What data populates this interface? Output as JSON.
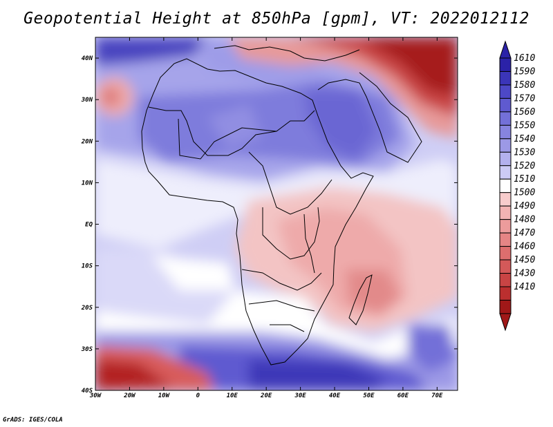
{
  "title": "Geopotential Height at 850hPa [gpm], VT: 2022012112",
  "footer": "GrADS: IGES/COLA",
  "map": {
    "lon_range": [
      -30,
      76
    ],
    "lat_range": [
      -40,
      45
    ],
    "x_ticks": [
      {
        "value": -30,
        "label": "30W"
      },
      {
        "value": -20,
        "label": "20W"
      },
      {
        "value": -10,
        "label": "10W"
      },
      {
        "value": 0,
        "label": "0"
      },
      {
        "value": 10,
        "label": "10E"
      },
      {
        "value": 20,
        "label": "20E"
      },
      {
        "value": 30,
        "label": "30E"
      },
      {
        "value": 40,
        "label": "40E"
      },
      {
        "value": 50,
        "label": "50E"
      },
      {
        "value": 60,
        "label": "60E"
      },
      {
        "value": 70,
        "label": "70E"
      }
    ],
    "y_ticks": [
      {
        "value": 40,
        "label": "40N"
      },
      {
        "value": 30,
        "label": "30N"
      },
      {
        "value": 20,
        "label": "20N"
      },
      {
        "value": 10,
        "label": "10N"
      },
      {
        "value": 0,
        "label": "EQ"
      },
      {
        "value": -10,
        "label": "10S"
      },
      {
        "value": -20,
        "label": "20S"
      },
      {
        "value": -30,
        "label": "30S"
      },
      {
        "value": -40,
        "label": "40S"
      }
    ]
  },
  "colorbar": {
    "labels": [
      "1610",
      "1590",
      "1580",
      "1570",
      "1560",
      "1550",
      "1540",
      "1530",
      "1520",
      "1510",
      "1500",
      "1490",
      "1480",
      "1470",
      "1460",
      "1450",
      "1430",
      "1410"
    ],
    "colors": [
      "#2b22a8",
      "#3b35b8",
      "#4d48c6",
      "#5f5ad0",
      "#7370d8",
      "#8784df",
      "#9c99e6",
      "#b3b1ee",
      "#cccbf5",
      "#ffffff",
      "#f7cccc",
      "#f2b3b3",
      "#ec9c9c",
      "#e58585",
      "#dd6e6e",
      "#d45959",
      "#c94444",
      "#bb2f2f",
      "#a01818"
    ],
    "arrow_top_color": "#2b22a8",
    "arrow_bottom_color": "#a01818"
  }
}
